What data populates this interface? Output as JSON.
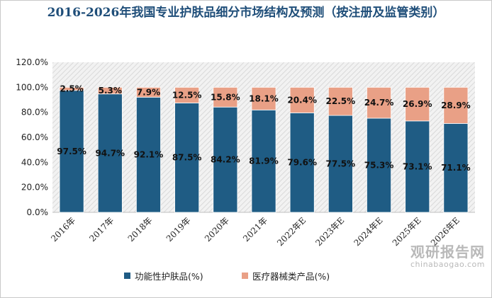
{
  "chart_data": {
    "type": "bar",
    "stacked": true,
    "title": "2016-2026年我国专业护肤品细分市场结构及预测（按注册及监管类别）",
    "categories": [
      "2016年",
      "2017年",
      "2018年",
      "2019年",
      "2020年",
      "2021年",
      "2022年E",
      "2023年E",
      "2024年E",
      "2025年E",
      "2026年E"
    ],
    "series": [
      {
        "name": "功能性护肤品(%)",
        "color": "#1f5c84",
        "values": [
          97.5,
          94.7,
          92.1,
          87.5,
          84.2,
          81.9,
          79.6,
          77.5,
          75.3,
          73.1,
          71.1
        ],
        "labels": [
          "97.5%",
          "94.7%",
          "92.1%",
          "87.5%",
          "84.2%",
          "81.9%",
          "79.6%",
          "77.5%",
          "75.3%",
          "73.1%",
          "71.1%"
        ]
      },
      {
        "name": "医疗器械类产品(%)",
        "color": "#e9a086",
        "values": [
          2.5,
          5.3,
          7.9,
          12.5,
          15.8,
          18.1,
          20.4,
          22.5,
          24.7,
          26.9,
          28.9
        ],
        "labels": [
          "2.5%",
          "5.3%",
          "7.9%",
          "12.5%",
          "15.8%",
          "18.1%",
          "20.4%",
          "22.5%",
          "24.7%",
          "26.9%",
          "28.9%"
        ]
      }
    ],
    "yticks": [
      "0.0%",
      "20.0%",
      "40.0%",
      "60.0%",
      "80.0%",
      "100.0%",
      "120.0%"
    ],
    "ylim": [
      0,
      120
    ],
    "legend_position": "bottom",
    "grid": false
  },
  "watermark": {
    "main": "观研报告网",
    "url": "chinabaogao.com"
  }
}
